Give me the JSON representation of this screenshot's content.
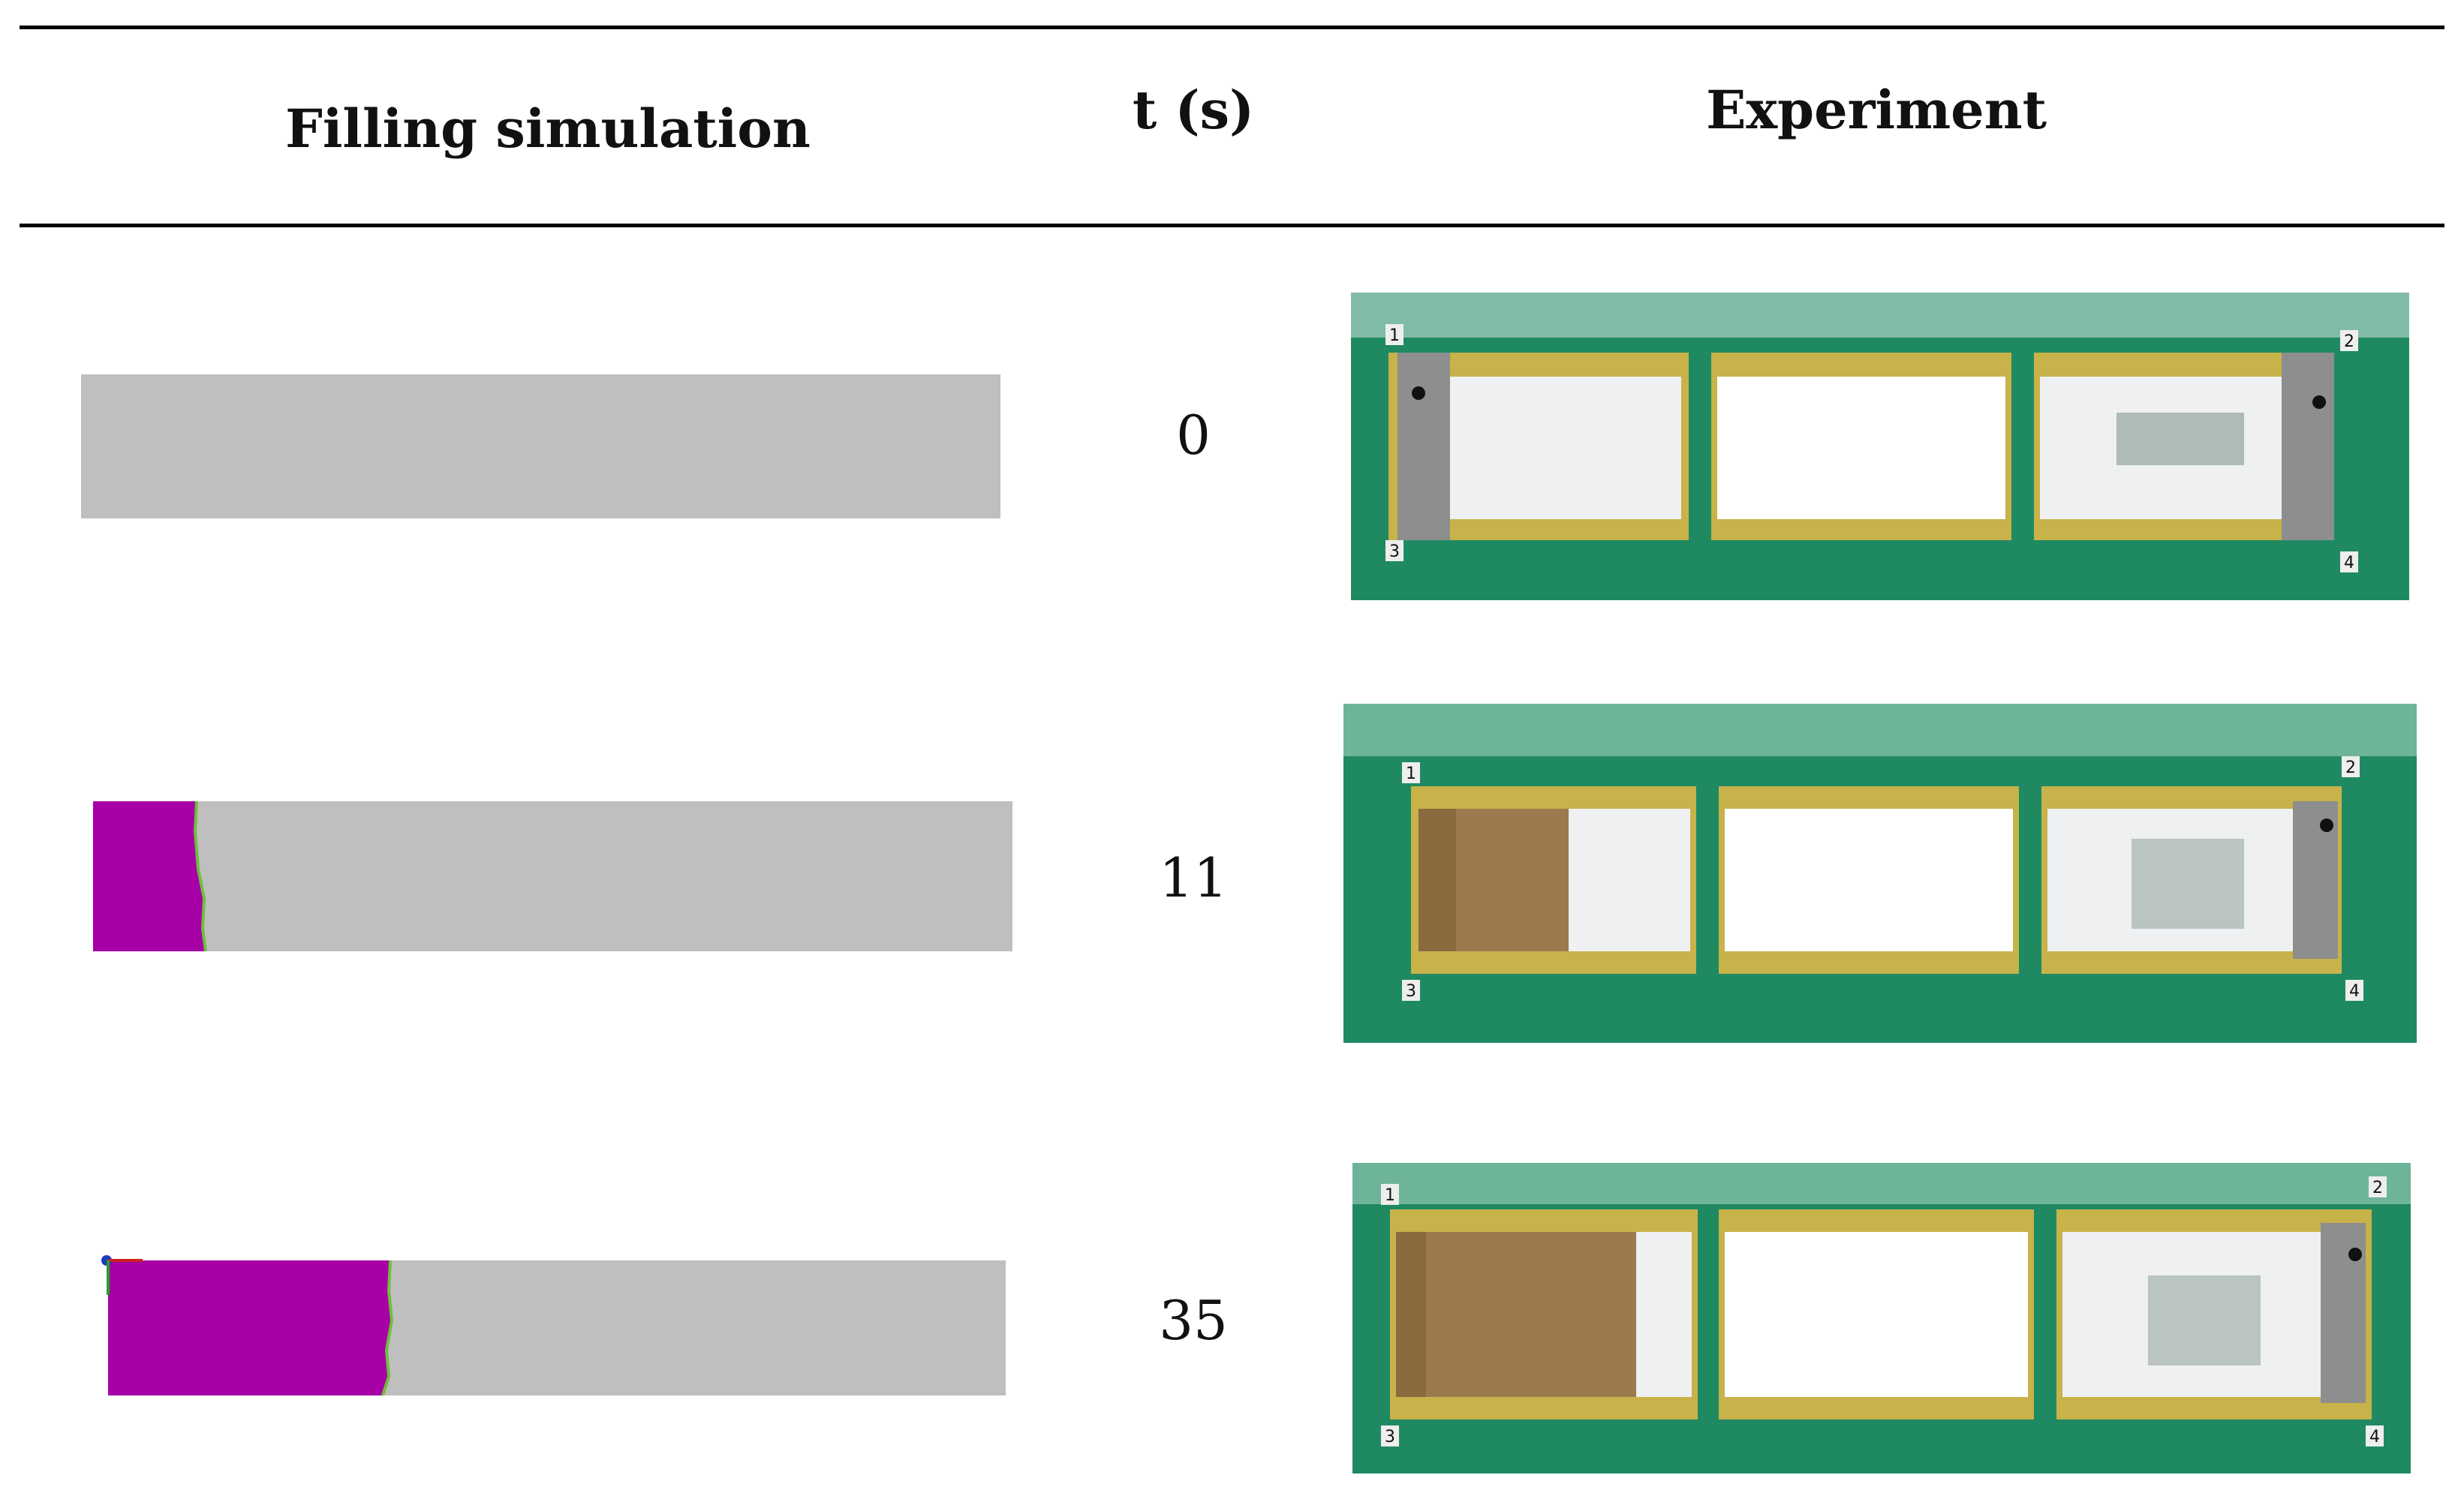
{
  "table": {
    "headers": {
      "simulation": "Filling simulation",
      "time": "t (s)",
      "experiment": "Experiment"
    },
    "rows": [
      {
        "t": "0",
        "fill_fraction": 0.0
      },
      {
        "t": "11",
        "fill_fraction": 0.11
      },
      {
        "t": "35",
        "fill_fraction": 0.3
      }
    ]
  },
  "colors": {
    "unfilled": "#bfbfbf",
    "filled": "#a600a6",
    "plate": "#1f8a62",
    "frame": "#c8b24a",
    "flow": "#9c7a4e"
  },
  "icons": [
    "corner-marker-1",
    "corner-marker-2",
    "corner-marker-3",
    "corner-marker-4"
  ],
  "corner_labels": [
    "1",
    "2",
    "3",
    "4"
  ]
}
